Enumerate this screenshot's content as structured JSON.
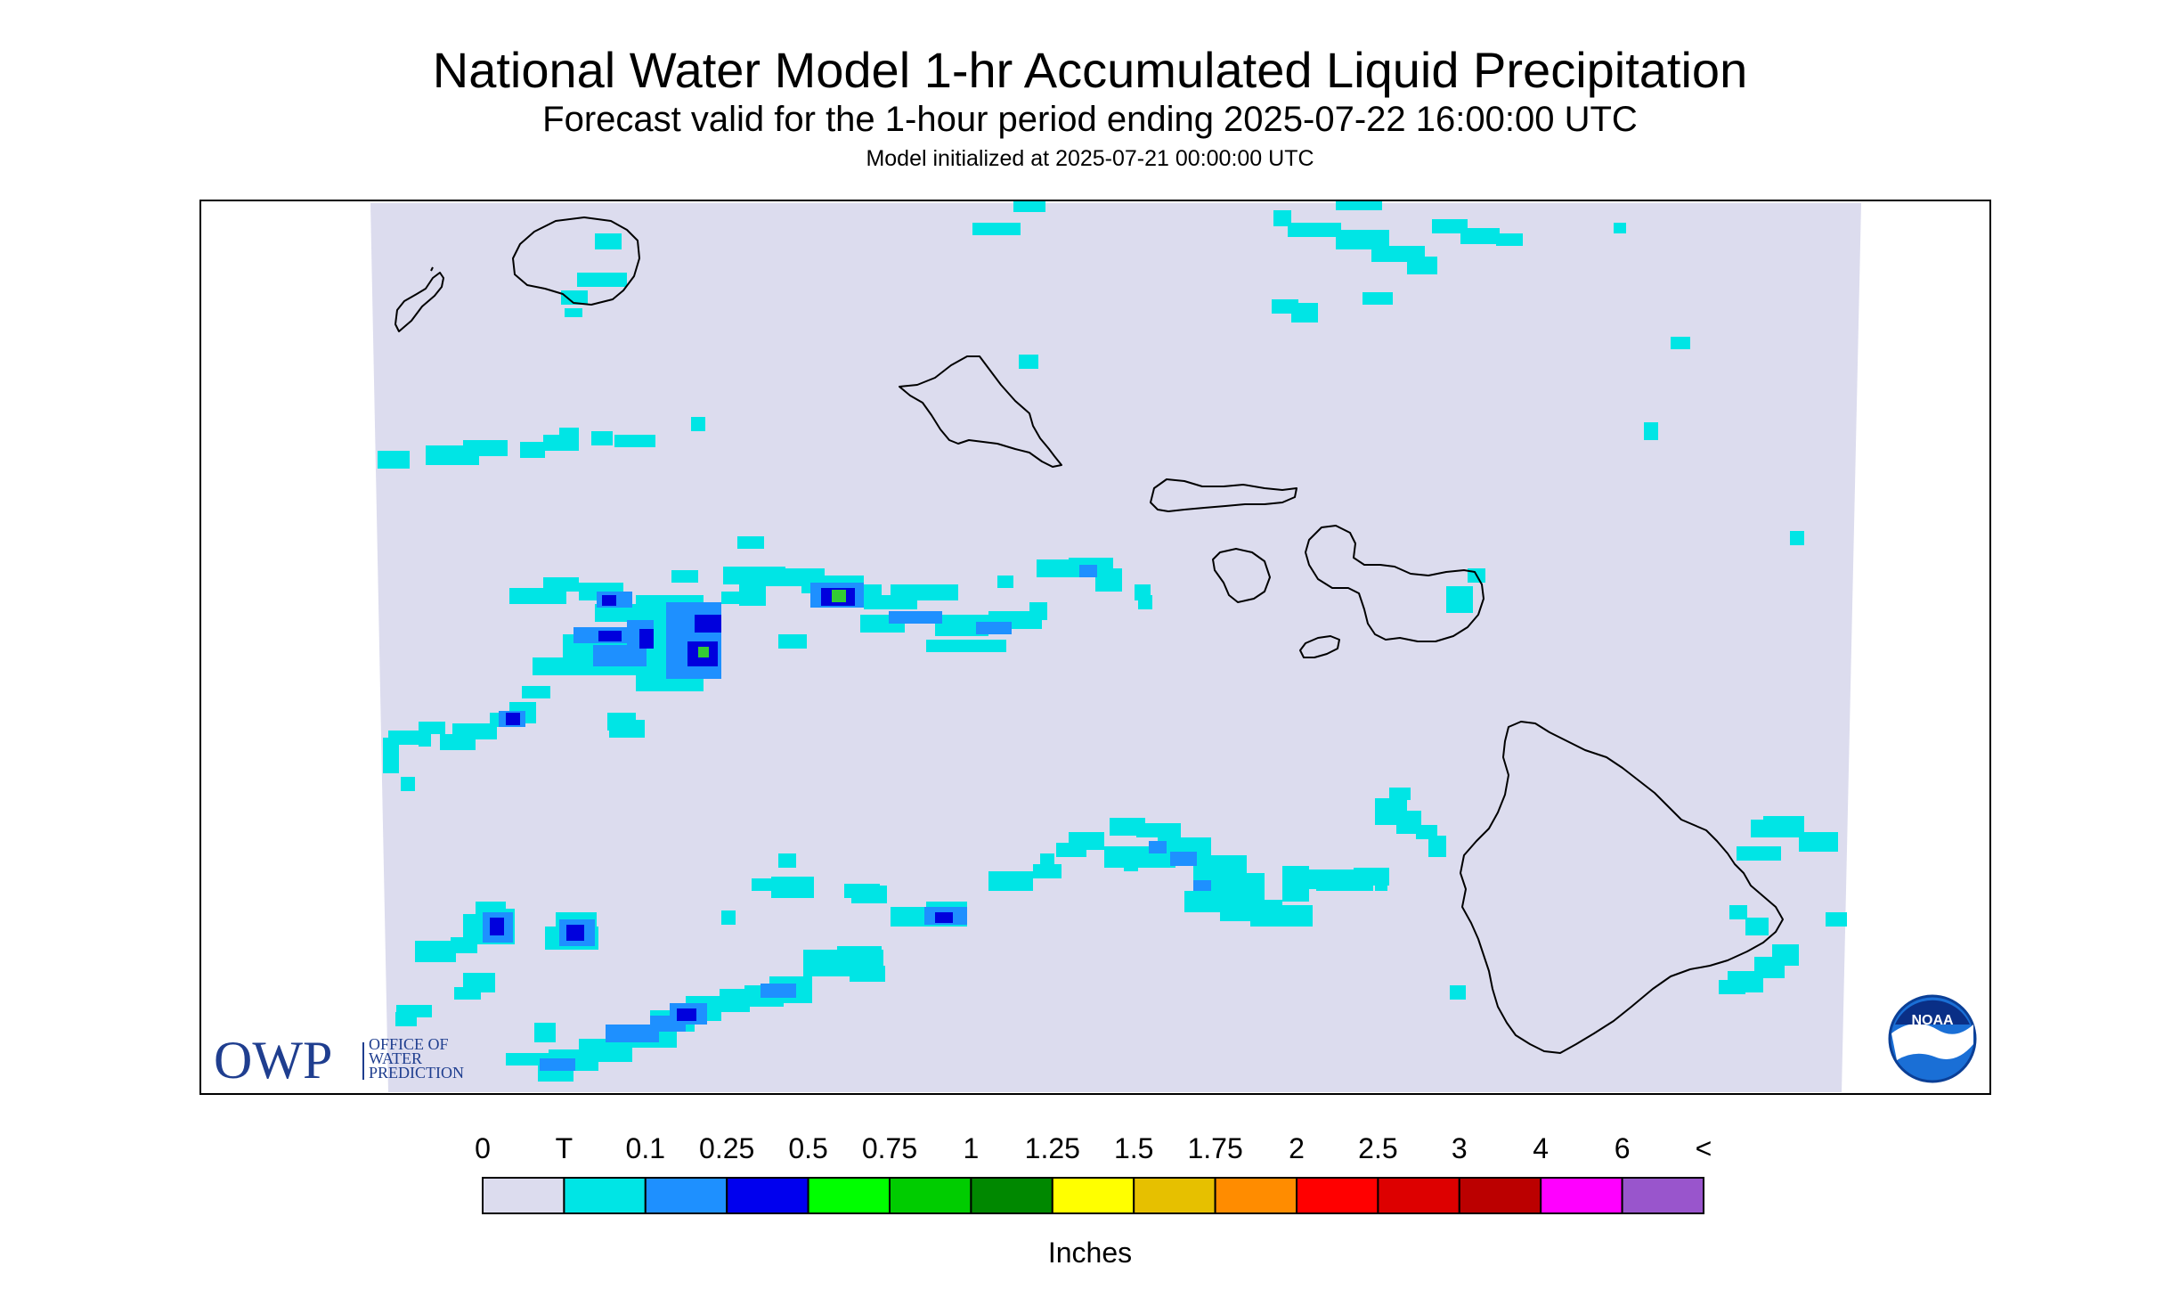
{
  "title": "National Water Model 1-hr Accumulated Liquid Precipitation",
  "subtitle": "Forecast valid for the 1-hour period ending 2025-07-22 16:00:00 UTC",
  "model_init": "Model initialized at 2025-07-21 00:00:00 UTC",
  "colors": {
    "background_field": "#dcdcee",
    "trace": "#00e5e5",
    "light_blue": "#1e90ff",
    "blue": "#0000dd",
    "green": "#33cc33",
    "coastline": "#000000"
  },
  "legend": {
    "unit_label": "Inches",
    "labels": [
      "0",
      "T",
      "0.1",
      "0.25",
      "0.5",
      "0.75",
      "1",
      "1.25",
      "1.5",
      "1.75",
      "2",
      "2.5",
      "3",
      "4",
      "6",
      "<"
    ],
    "colors": [
      "#dcdcee",
      "#00e5e5",
      "#1e90ff",
      "#0000ee",
      "#00ff00",
      "#00cc00",
      "#008800",
      "#ffff00",
      "#e6c000",
      "#ff8c00",
      "#ff0000",
      "#dd0000",
      "#bb0000",
      "#ff00ff",
      "#9955cc"
    ]
  },
  "logos": {
    "owp_short": "OWP",
    "owp_line1": "OFFICE OF",
    "owp_line2": "WATER",
    "owp_line3": "PREDICTION",
    "noaa": "NOAA"
  },
  "islands": [
    "Kauai",
    "Niihau",
    "Oahu",
    "Molokai",
    "Lanai",
    "Maui",
    "Kahoolawe",
    "Hawaii"
  ]
}
